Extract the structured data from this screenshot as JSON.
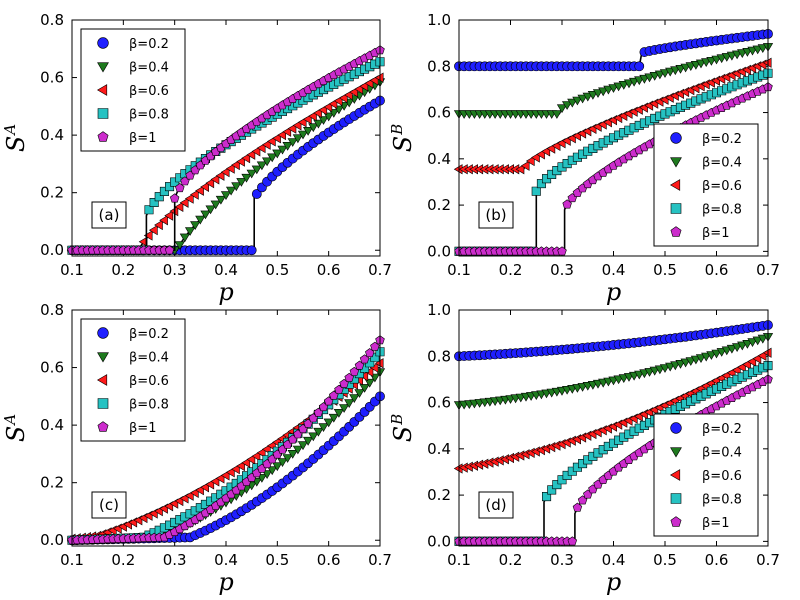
{
  "chart_data": [
    {
      "type": "scatter",
      "tag": "(a)",
      "xlabel": "p",
      "ylabel": "S",
      "ylabel_sup": "A",
      "xlim": [
        0.1,
        0.7
      ],
      "ylim": [
        -0.02,
        0.8
      ],
      "xticks": [
        "0.1",
        "0.2",
        "0.3",
        "0.4",
        "0.5",
        "0.6",
        "0.7"
      ],
      "yticks": [
        "0.0",
        "0.2",
        "0.4",
        "0.6",
        "0.8"
      ],
      "legend_position": "top-left",
      "series": [
        {
          "name": "β=0.2",
          "pc": 0.45,
          "sc": 0.16,
          "end": 0.52,
          "kind": "jump"
        },
        {
          "name": "β=0.4",
          "pc": 0.305,
          "sc": 0.0,
          "end": 0.585,
          "kind": "sqrt"
        },
        {
          "name": "β=0.6",
          "pc": 0.23,
          "sc": 0.0,
          "end": 0.6,
          "kind": "sqrt"
        },
        {
          "name": "β=0.8",
          "pc": 0.245,
          "sc": 0.12,
          "end": 0.655,
          "kind": "jump"
        },
        {
          "name": "β=1",
          "pc": 0.3,
          "sc": 0.18,
          "end": 0.695,
          "kind": "jump"
        }
      ]
    },
    {
      "type": "scatter",
      "tag": "(b)",
      "xlabel": "p",
      "ylabel": "S",
      "ylabel_sup": "B",
      "xlim": [
        0.1,
        0.7
      ],
      "ylim": [
        -0.02,
        1.0
      ],
      "xticks": [
        "0.1",
        "0.2",
        "0.3",
        "0.4",
        "0.5",
        "0.6",
        "0.7"
      ],
      "yticks": [
        "0.0",
        "0.2",
        "0.4",
        "0.6",
        "0.8",
        "1.0"
      ],
      "legend_position": "bottom-right",
      "series": [
        {
          "name": "β=0.2",
          "base": 0.8,
          "pc": 0.45,
          "sc": 0.855,
          "end": 0.94,
          "kind": "plateau"
        },
        {
          "name": "β=0.4",
          "base": 0.595,
          "pc": 0.3,
          "sc": 0.62,
          "end": 0.885,
          "kind": "plateau"
        },
        {
          "name": "β=0.6",
          "base": 0.355,
          "pc": 0.23,
          "sc": 0.37,
          "end": 0.815,
          "kind": "plateau"
        },
        {
          "name": "β=0.8",
          "base": 0.0,
          "pc": 0.25,
          "sc": 0.26,
          "end": 0.77,
          "kind": "jump0"
        },
        {
          "name": "β=1",
          "base": 0.0,
          "pc": 0.305,
          "sc": 0.18,
          "end": 0.71,
          "kind": "jump0"
        }
      ]
    },
    {
      "type": "scatter",
      "tag": "(c)",
      "xlabel": "p",
      "ylabel": "S",
      "ylabel_sup": "A",
      "xlim": [
        0.1,
        0.7
      ],
      "ylim": [
        -0.02,
        0.8
      ],
      "xticks": [
        "0.1",
        "0.2",
        "0.3",
        "0.4",
        "0.5",
        "0.6",
        "0.7"
      ],
      "yticks": [
        "0.0",
        "0.2",
        "0.4",
        "0.6",
        "0.8"
      ],
      "legend_position": "top-left",
      "series": [
        {
          "name": "β=0.2",
          "start": 0.0,
          "pc": 0.33,
          "end": 0.5,
          "kind": "smooth"
        },
        {
          "name": "β=0.4",
          "start": 0.0,
          "pc": 0.27,
          "end": 0.585,
          "kind": "smooth"
        },
        {
          "name": "β=0.6",
          "start": 0.005,
          "pc": 0.15,
          "end": 0.615,
          "kind": "smooth"
        },
        {
          "name": "β=0.8",
          "start": 0.0,
          "pc": 0.24,
          "end": 0.655,
          "kind": "smooth"
        },
        {
          "name": "β=1",
          "start": 0.0,
          "pc": 0.28,
          "end": 0.695,
          "kind": "smooth"
        }
      ]
    },
    {
      "type": "scatter",
      "tag": "(d)",
      "xlabel": "p",
      "ylabel": "S",
      "ylabel_sup": "B",
      "xlim": [
        0.1,
        0.7
      ],
      "ylim": [
        -0.02,
        1.0
      ],
      "xticks": [
        "0.1",
        "0.2",
        "0.3",
        "0.4",
        "0.5",
        "0.6",
        "0.7"
      ],
      "yticks": [
        "0.0",
        "0.2",
        "0.4",
        "0.6",
        "0.8",
        "1.0"
      ],
      "legend_position": "bottom-right",
      "series": [
        {
          "name": "β=0.2",
          "start": 0.8,
          "end": 0.935,
          "kind": "rise"
        },
        {
          "name": "β=0.4",
          "start": 0.59,
          "end": 0.885,
          "kind": "rise"
        },
        {
          "name": "β=0.6",
          "start": 0.315,
          "end": 0.815,
          "kind": "rise"
        },
        {
          "name": "β=0.8",
          "base": 0.0,
          "pc": 0.265,
          "sc": 0.17,
          "end": 0.76,
          "kind": "jump0"
        },
        {
          "name": "β=1",
          "base": 0.0,
          "pc": 0.325,
          "sc": 0.12,
          "end": 0.7,
          "kind": "jump0"
        }
      ]
    }
  ],
  "style": {
    "colors": [
      "#1f1fff",
      "#1e7a1e",
      "#ff1a1a",
      "#26c2c2",
      "#cc2ccc"
    ],
    "markers": [
      "circle",
      "triangle-down",
      "triangle-left",
      "square",
      "pentagon"
    ]
  }
}
